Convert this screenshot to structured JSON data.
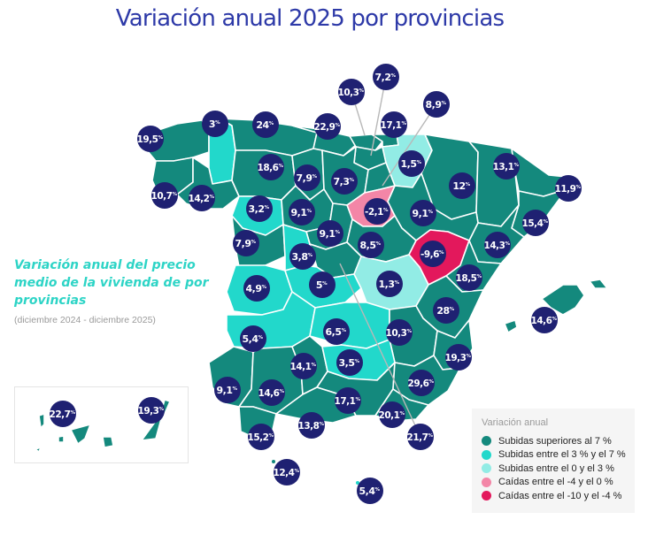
{
  "title": "Variación anual 2025 por provincias",
  "subtitle": {
    "heading": "Variación anual del precio medio de la vivienda de por provincias",
    "period": "(diciembre 2024 - diciembre 2025)"
  },
  "colors": {
    "title": "#2e3aa8",
    "bubble": "#1f2172",
    "dark_teal": "#14897d",
    "teal": "#22d8cb",
    "light_teal": "#92ece5",
    "pink": "#f386a7",
    "red": "#e3185c",
    "province_border": "#ffffff",
    "leader_line": "#b8b8b8"
  },
  "legend": {
    "title": "Variación anual",
    "items": [
      {
        "label": "Subidas superiores al 7 %",
        "color": "#14897d"
      },
      {
        "label": "Subidas entre el 3 % y el 7 %",
        "color": "#22d8cb"
      },
      {
        "label": "Subidas entre el 0 y el 3 %",
        "color": "#92ece5"
      },
      {
        "label": "Caídas entre el -4 y el 0 %",
        "color": "#f386a7"
      },
      {
        "label": "Caídas entre el -10 y el -4 %",
        "color": "#e3185c"
      }
    ]
  },
  "percent_sign": "%",
  "chart_data": {
    "type": "choropleth",
    "title": "Variación anual 2025 por provincias",
    "unit": "%",
    "values": [
      {
        "id": "coruna",
        "value": "19,5"
      },
      {
        "id": "lugo",
        "value": "3"
      },
      {
        "id": "pontevedra",
        "value": "10,7"
      },
      {
        "id": "ourense",
        "value": "14,2"
      },
      {
        "id": "asturias",
        "value": "24"
      },
      {
        "id": "cantabria",
        "value": "22,9"
      },
      {
        "id": "bizkaia",
        "value": "17,1"
      },
      {
        "id": "alava",
        "value": "10,3"
      },
      {
        "id": "gipuzkoa",
        "value": "7,2"
      },
      {
        "id": "navarra_leader",
        "value": "8,9"
      },
      {
        "id": "leon",
        "value": "18,6"
      },
      {
        "id": "palencia",
        "value": "7,9"
      },
      {
        "id": "burgos",
        "value": "7,3"
      },
      {
        "id": "larioja",
        "value": "1,5"
      },
      {
        "id": "huesca",
        "value": "12"
      },
      {
        "id": "lleida",
        "value": "13,1"
      },
      {
        "id": "girona",
        "value": "11,9"
      },
      {
        "id": "barcelona",
        "value": "15,4"
      },
      {
        "id": "tarragona",
        "value": "14,3"
      },
      {
        "id": "zamora",
        "value": "3,2"
      },
      {
        "id": "valladolid",
        "value": "9,1"
      },
      {
        "id": "soria",
        "value": "-2,1"
      },
      {
        "id": "zaragoza",
        "value": "9,1"
      },
      {
        "id": "segovia",
        "value": "9,1"
      },
      {
        "id": "salamanca",
        "value": "7,9"
      },
      {
        "id": "avila",
        "value": "3,8"
      },
      {
        "id": "guadalajara",
        "value": "8,5"
      },
      {
        "id": "teruel",
        "value": "-9,6"
      },
      {
        "id": "castellon",
        "value": "18,5"
      },
      {
        "id": "caceres",
        "value": "4,9"
      },
      {
        "id": "toledo",
        "value": "5"
      },
      {
        "id": "cuenca",
        "value": "1,3"
      },
      {
        "id": "valencia",
        "value": "28"
      },
      {
        "id": "badajoz",
        "value": "5,4"
      },
      {
        "id": "ciudadreal",
        "value": "6,5"
      },
      {
        "id": "albacete",
        "value": "10,3"
      },
      {
        "id": "alicante",
        "value": "19,3"
      },
      {
        "id": "baleares",
        "value": "14,6"
      },
      {
        "id": "huelva",
        "value": "9,1"
      },
      {
        "id": "sevilla",
        "value": "14,6"
      },
      {
        "id": "cordoba",
        "value": "14,1"
      },
      {
        "id": "jaen",
        "value": "3,5"
      },
      {
        "id": "granada",
        "value": "17,1"
      },
      {
        "id": "murcia",
        "value": "29,6"
      },
      {
        "id": "almeria",
        "value": "20,1"
      },
      {
        "id": "madrid",
        "value": "21,7"
      },
      {
        "id": "malaga",
        "value": "13,8"
      },
      {
        "id": "cadiz",
        "value": "15,2"
      },
      {
        "id": "ceuta",
        "value": "12,4"
      },
      {
        "id": "melilla",
        "value": "5,4"
      },
      {
        "id": "santacruz",
        "value": "22,7"
      },
      {
        "id": "laspalmas",
        "value": "19,3"
      }
    ]
  }
}
